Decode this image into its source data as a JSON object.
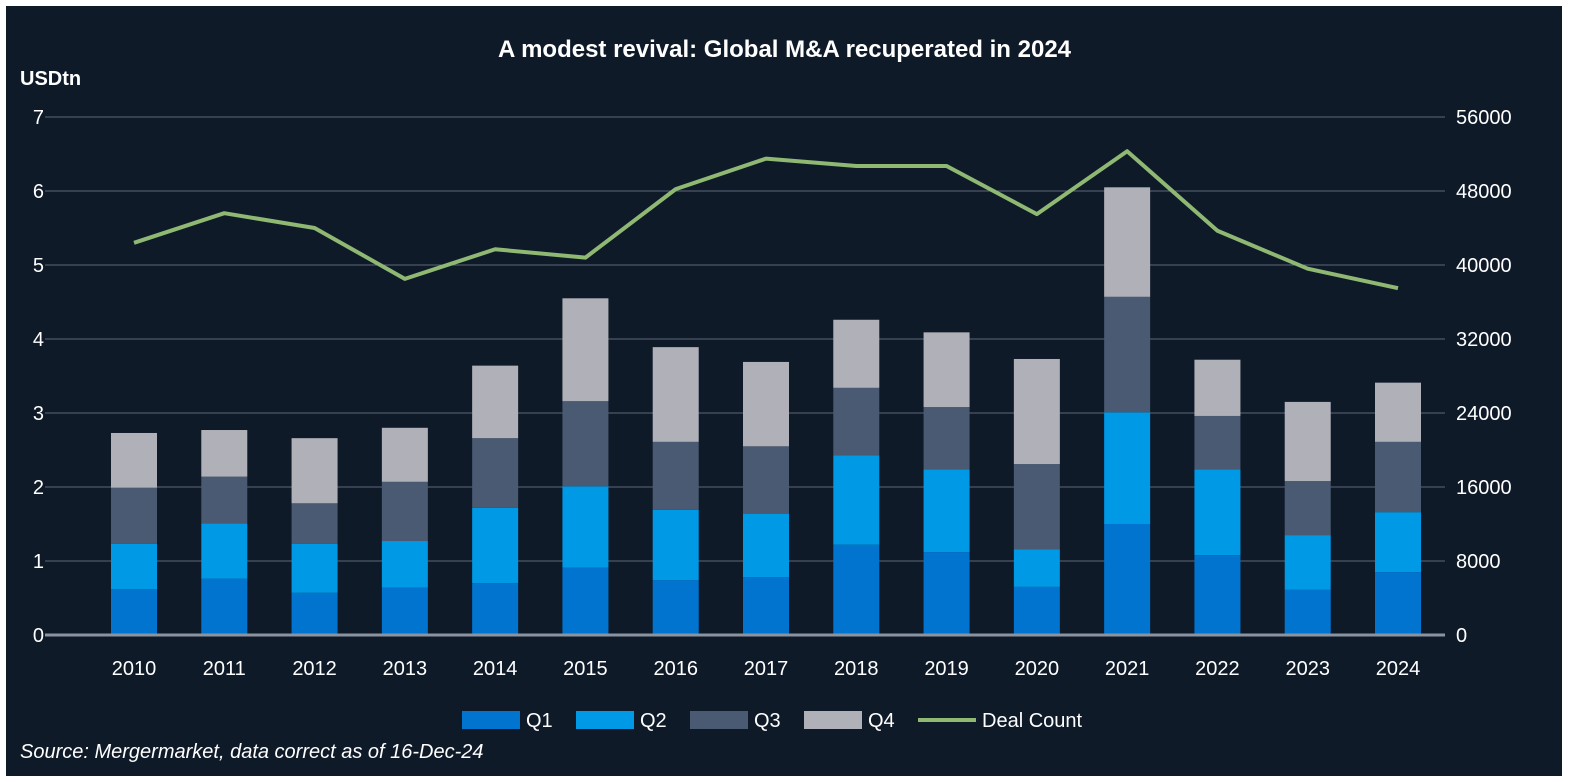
{
  "chart_data": {
    "type": "bar",
    "stacked": true,
    "title": "A modest revival: Global M&A  recuperated in 2024",
    "ylabel": "USDtn",
    "y2label": "",
    "ylim": [
      0,
      7
    ],
    "y2lim": [
      0,
      56000
    ],
    "yticks": [
      "0",
      "1",
      "2",
      "3",
      "4",
      "5",
      "6",
      "7"
    ],
    "y2ticks": [
      "0",
      "8000",
      "16000",
      "24000",
      "32000",
      "40000",
      "48000",
      "56000"
    ],
    "grid": true,
    "legend_position": "bottom",
    "categories": [
      "2010",
      "2011",
      "2012",
      "2013",
      "2014",
      "2015",
      "2016",
      "2017",
      "2018",
      "2019",
      "2020",
      "2021",
      "2022",
      "2023",
      "2024"
    ],
    "series": [
      {
        "name": "Q1",
        "type": "bar",
        "axis": "left",
        "color": "#0074cf",
        "values": [
          0.62,
          0.76,
          0.57,
          0.64,
          0.7,
          0.91,
          0.74,
          0.78,
          1.22,
          1.12,
          0.65,
          1.5,
          1.08,
          0.61,
          0.85
        ]
      },
      {
        "name": "Q2",
        "type": "bar",
        "axis": "left",
        "color": "#0099e6",
        "values": [
          0.61,
          0.75,
          0.66,
          0.63,
          1.02,
          1.1,
          0.95,
          0.86,
          1.21,
          1.12,
          0.51,
          1.51,
          1.16,
          0.74,
          0.81
        ]
      },
      {
        "name": "Q3",
        "type": "bar",
        "axis": "left",
        "color": "#4a5a72",
        "values": [
          0.76,
          0.63,
          0.55,
          0.8,
          0.94,
          1.15,
          0.92,
          0.91,
          0.91,
          0.84,
          1.15,
          1.56,
          0.72,
          0.73,
          0.95
        ]
      },
      {
        "name": "Q4",
        "type": "bar",
        "axis": "left",
        "color": "#b0b0b8",
        "values": [
          0.74,
          0.63,
          0.88,
          0.73,
          0.98,
          1.39,
          1.28,
          1.14,
          0.92,
          1.01,
          1.42,
          1.48,
          0.76,
          1.07,
          0.8
        ]
      },
      {
        "name": "Deal Count",
        "type": "line",
        "axis": "right",
        "color": "#8fb873",
        "values": [
          42400,
          45600,
          44000,
          38500,
          41700,
          40800,
          48200,
          51500,
          50700,
          50700,
          45500,
          52300,
          43700,
          39600,
          37500
        ]
      }
    ]
  },
  "source": "Source: Mergermarket, data correct as of  16-Dec-24"
}
